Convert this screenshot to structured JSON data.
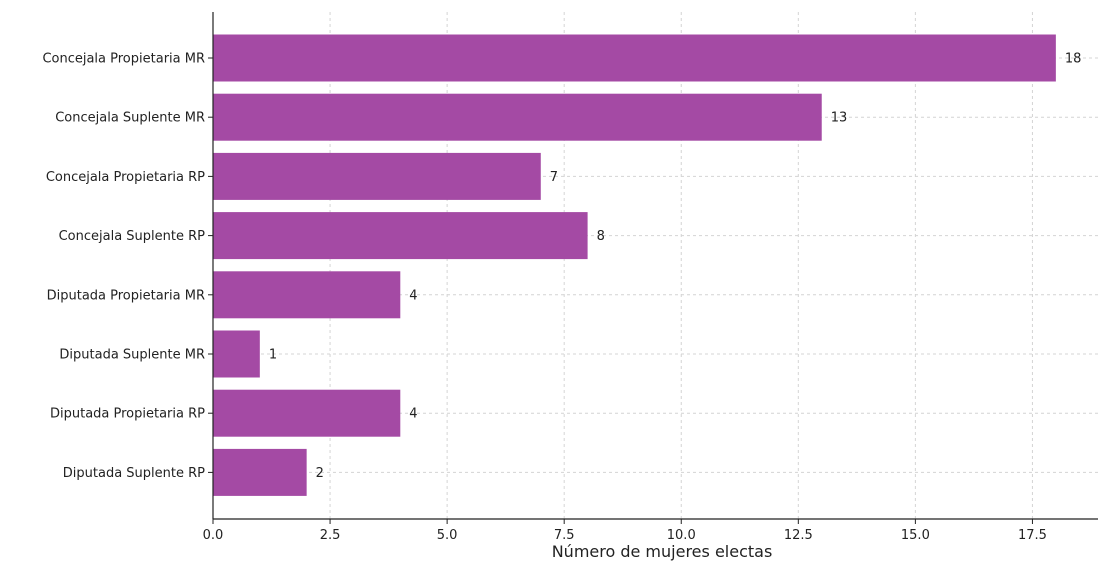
{
  "chart_data": {
    "type": "bar",
    "orientation": "horizontal",
    "title": "",
    "xlabel": "Número de mujeres electas",
    "ylabel": "",
    "categories": [
      "Concejala Propietaria MR",
      "Concejala Suplente MR",
      "Concejala Propietaria RP",
      "Concejala Suplente RP",
      "Diputada Propietaria MR",
      "Diputada Suplente MR",
      "Diputada Propietaria RP",
      "Diputada Suplente RP"
    ],
    "values": [
      18,
      13,
      7,
      8,
      4,
      1,
      4,
      2
    ],
    "value_labels": [
      "18",
      "13",
      "7",
      "8",
      "4",
      "1",
      "4",
      "2"
    ],
    "xlim": [
      0,
      18.9
    ],
    "xticks": [
      0,
      2.5,
      5,
      7.5,
      10,
      12.5,
      15,
      17.5
    ],
    "xtick_labels": [
      "0.0",
      "2.5",
      "5.0",
      "7.5",
      "10.0",
      "12.5",
      "15.0",
      "17.5"
    ],
    "grid": true,
    "bar_color": "#a44aa4",
    "grid_color": "#d4d4d4",
    "axis_color": "#222222"
  }
}
